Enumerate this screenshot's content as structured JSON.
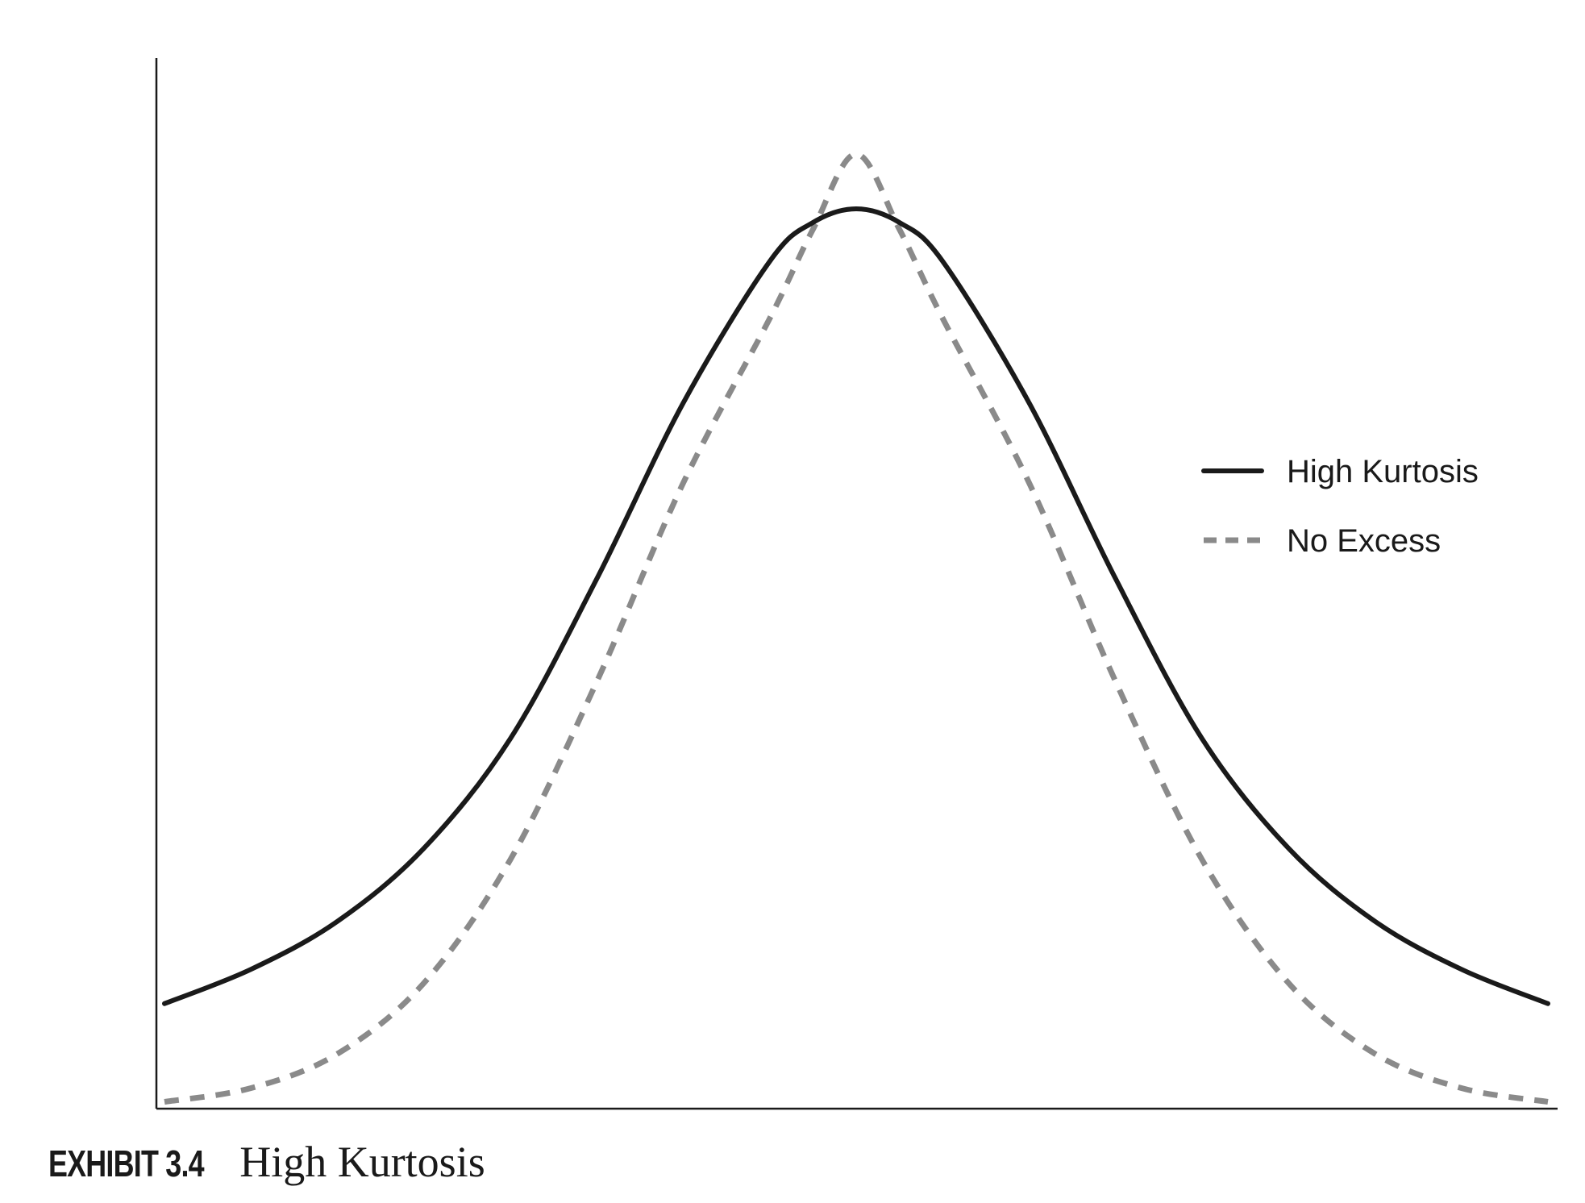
{
  "chart_data": {
    "type": "line",
    "title": "",
    "xlabel": "",
    "ylabel": "",
    "axis_ticks": false,
    "grid": false,
    "legend_position": "right",
    "xlim": [
      -4,
      4
    ],
    "ylim": [
      0,
      0.46
    ],
    "series": [
      {
        "name": "High Kurtosis",
        "style": "solid",
        "color": "#1a1a1a",
        "x": [
          -4,
          -3.5,
          -3,
          -2.5,
          -2,
          -1.5,
          -1,
          -0.5,
          -0.25,
          0,
          0.25,
          0.5,
          1,
          1.5,
          2,
          2.5,
          3,
          3.5,
          4
        ],
        "y": [
          0.046,
          0.061,
          0.082,
          0.114,
          0.162,
          0.232,
          0.309,
          0.371,
          0.388,
          0.394,
          0.388,
          0.371,
          0.309,
          0.232,
          0.162,
          0.114,
          0.082,
          0.061,
          0.046
        ]
      },
      {
        "name": "No Excess",
        "style": "dashed",
        "color": "#8a8a8a",
        "x": [
          -4,
          -3.5,
          -3,
          -2.5,
          -2,
          -1.5,
          -1,
          -0.5,
          -0.25,
          0,
          0.25,
          0.5,
          1,
          1.5,
          2,
          2.5,
          3,
          3.5,
          4
        ],
        "y": [
          0.003,
          0.009,
          0.024,
          0.055,
          0.109,
          0.187,
          0.274,
          0.346,
          0.385,
          0.418,
          0.385,
          0.346,
          0.274,
          0.187,
          0.109,
          0.055,
          0.024,
          0.009,
          0.003
        ]
      }
    ]
  },
  "caption": {
    "label": "EXHIBIT 3.4",
    "title": "High Kurtosis"
  }
}
